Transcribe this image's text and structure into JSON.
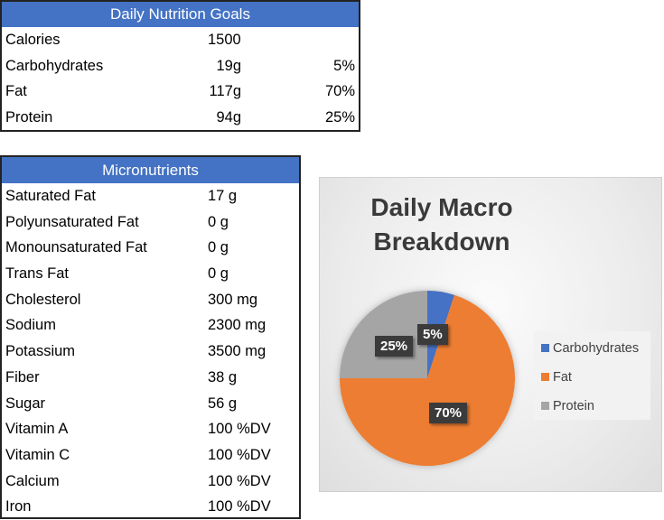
{
  "goals": {
    "title": "Daily Nutrition Goals",
    "rows": [
      {
        "label": "Calories",
        "amount": "1500",
        "grams": "",
        "pct": ""
      },
      {
        "label": "Carbohydrates",
        "amount": "",
        "grams": "19g",
        "pct": "5%"
      },
      {
        "label": "Fat",
        "amount": "",
        "grams": "117g",
        "pct": "70%"
      },
      {
        "label": "Protein",
        "amount": "",
        "grams": "94g",
        "pct": "25%"
      }
    ]
  },
  "micro": {
    "title": "Micronutrients",
    "rows": [
      {
        "label": "Saturated Fat",
        "value": "17 g"
      },
      {
        "label": "Polyunsaturated Fat",
        "value": "0 g"
      },
      {
        "label": "Monounsaturated Fat",
        "value": "0 g"
      },
      {
        "label": "Trans Fat",
        "value": "0 g"
      },
      {
        "label": "Cholesterol",
        "value": "300 mg"
      },
      {
        "label": "Sodium",
        "value": "2300 mg"
      },
      {
        "label": "Potassium",
        "value": "3500 mg"
      },
      {
        "label": "Fiber",
        "value": "38 g"
      },
      {
        "label": "Sugar",
        "value": "56 g"
      },
      {
        "label": "Vitamin A",
        "value": "100 %DV"
      },
      {
        "label": "Vitamin C",
        "value": "100 %DV"
      },
      {
        "label": "Calcium",
        "value": "100 %DV"
      },
      {
        "label": "Iron",
        "value": "100 %DV"
      }
    ]
  },
  "chart_data": {
    "type": "pie",
    "title": "Daily Macro Breakdown",
    "title_line1": "Daily Macro",
    "title_line2": "Breakdown",
    "categories": [
      "Carbohydrates",
      "Fat",
      "Protein"
    ],
    "values": [
      5,
      70,
      25
    ],
    "labels": [
      "5%",
      "70%",
      "25%"
    ],
    "colors": [
      "#4472c4",
      "#ed7d31",
      "#a5a5a5"
    ],
    "legend_position": "right"
  }
}
